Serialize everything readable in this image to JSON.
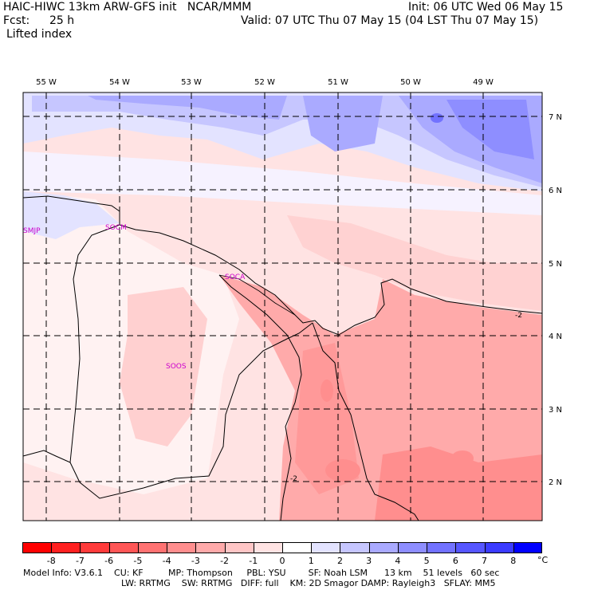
{
  "header": {
    "title": "HAIC-HIWC 13km ARW-GFS init   NCAR/MMM",
    "init": "Init: 06 UTC Wed 06 May 15",
    "fcst_label": "Fcst:",
    "fcst_value": "25 h",
    "valid": "Valid: 07 UTC Thu 07 May 15 (04 LST Thu 07 May 15)",
    "field": "Lifted index"
  },
  "map": {
    "lon_labels": [
      "55 W",
      "54 W",
      "53 W",
      "52 W",
      "51 W",
      "50 W",
      "49 W"
    ],
    "lat_labels": [
      "7 N",
      "6 N",
      "5 N",
      "4 N",
      "3 N",
      "2 N"
    ],
    "stations": [
      "SMJP",
      "SOCM",
      "SOCA",
      "SOOS"
    ],
    "contour_labels": [
      "-2",
      "-2"
    ]
  },
  "colorbar": {
    "unit": "°C",
    "tick_labels": [
      "-8",
      "-7",
      "-6",
      "-5",
      "-4",
      "-3",
      "-2",
      "-1",
      "0",
      "1",
      "2",
      "3",
      "4",
      "5",
      "6",
      "7",
      "8"
    ],
    "colors": [
      "#ff0000",
      "#ff2020",
      "#ff3b3b",
      "#ff5656",
      "#ff7272",
      "#ff8e8e",
      "#ffaaaa",
      "#ffc6c6",
      "#ffe3e3",
      "#ffffff",
      "#e3e3ff",
      "#c6c6ff",
      "#aaaaff",
      "#8e8eff",
      "#7272ff",
      "#5656ff",
      "#3b3bff",
      "#0000ff"
    ]
  },
  "footer": {
    "line1": "Model Info: V3.6.1    CU: KF         MP: Thompson     PBL: YSU        SF: Noah LSM      13 km    51 levels   60 sec",
    "line2": "LW: RRTMG    SW: RRTMG   DIFF: full    KM: 2D Smagor DAMP: Rayleigh3   SFLAY: MM5"
  }
}
